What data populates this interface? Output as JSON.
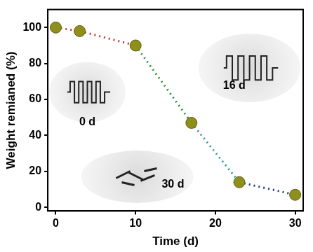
{
  "chart_data": {
    "type": "line",
    "x_label": "Time (d)",
    "y_label": "Weight remianed (%)",
    "x": [
      0,
      3,
      10,
      17,
      23,
      30
    ],
    "values": [
      100,
      98,
      90,
      47,
      14,
      7
    ],
    "color": "#8f8f1c",
    "marker": "circle",
    "line_style": "dotted",
    "annotations": [
      "0 d",
      "16 d",
      "30 d"
    ],
    "xlim": [
      -1,
      31
    ],
    "xticks": [
      0,
      10,
      20,
      30
    ],
    "ylim": [
      -2,
      110
    ],
    "yticks": [
      0,
      20,
      40,
      60,
      80,
      100
    ],
    "grid": false
  }
}
